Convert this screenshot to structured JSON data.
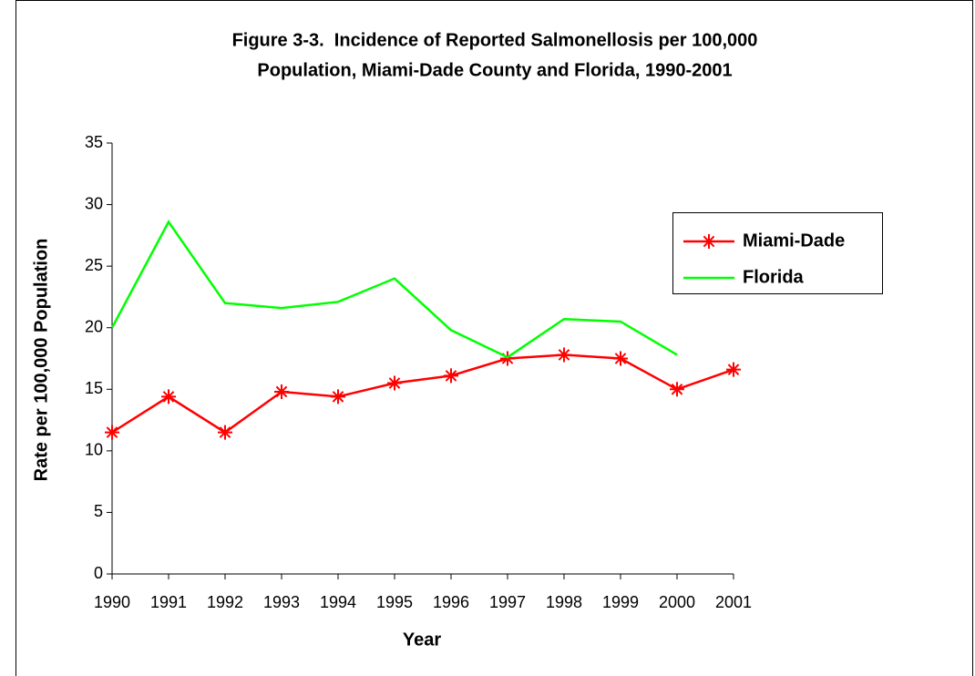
{
  "chart_data": {
    "type": "line",
    "title": [
      "Figure 3-3.  Incidence of Reported Salmonellosis per 100,000",
      "Population, Miami-Dade County and Florida, 1990-2001"
    ],
    "x_label": "Year",
    "y_label": "Rate per 100,000 Population",
    "categories": [
      "1990",
      "1991",
      "1992",
      "1993",
      "1994",
      "1995",
      "1996",
      "1997",
      "1998",
      "1999",
      "2000",
      "2001"
    ],
    "series": [
      {
        "name": "Miami-Dade",
        "color": "#ff0000",
        "marker": "asterisk",
        "values": [
          11.5,
          14.4,
          11.5,
          14.8,
          14.4,
          15.5,
          16.1,
          17.5,
          17.8,
          17.5,
          15.0,
          16.6
        ]
      },
      {
        "name": "Florida",
        "color": "#00ff00",
        "values": [
          20.0,
          28.6,
          22.0,
          21.6,
          22.1,
          24.0,
          19.8,
          17.6,
          20.7,
          20.5,
          17.8,
          null
        ]
      }
    ],
    "ylim": [
      0,
      35
    ],
    "yticks": [
      0,
      5,
      10,
      15,
      20,
      25,
      30,
      35
    ],
    "grid": false,
    "legend": "right"
  }
}
